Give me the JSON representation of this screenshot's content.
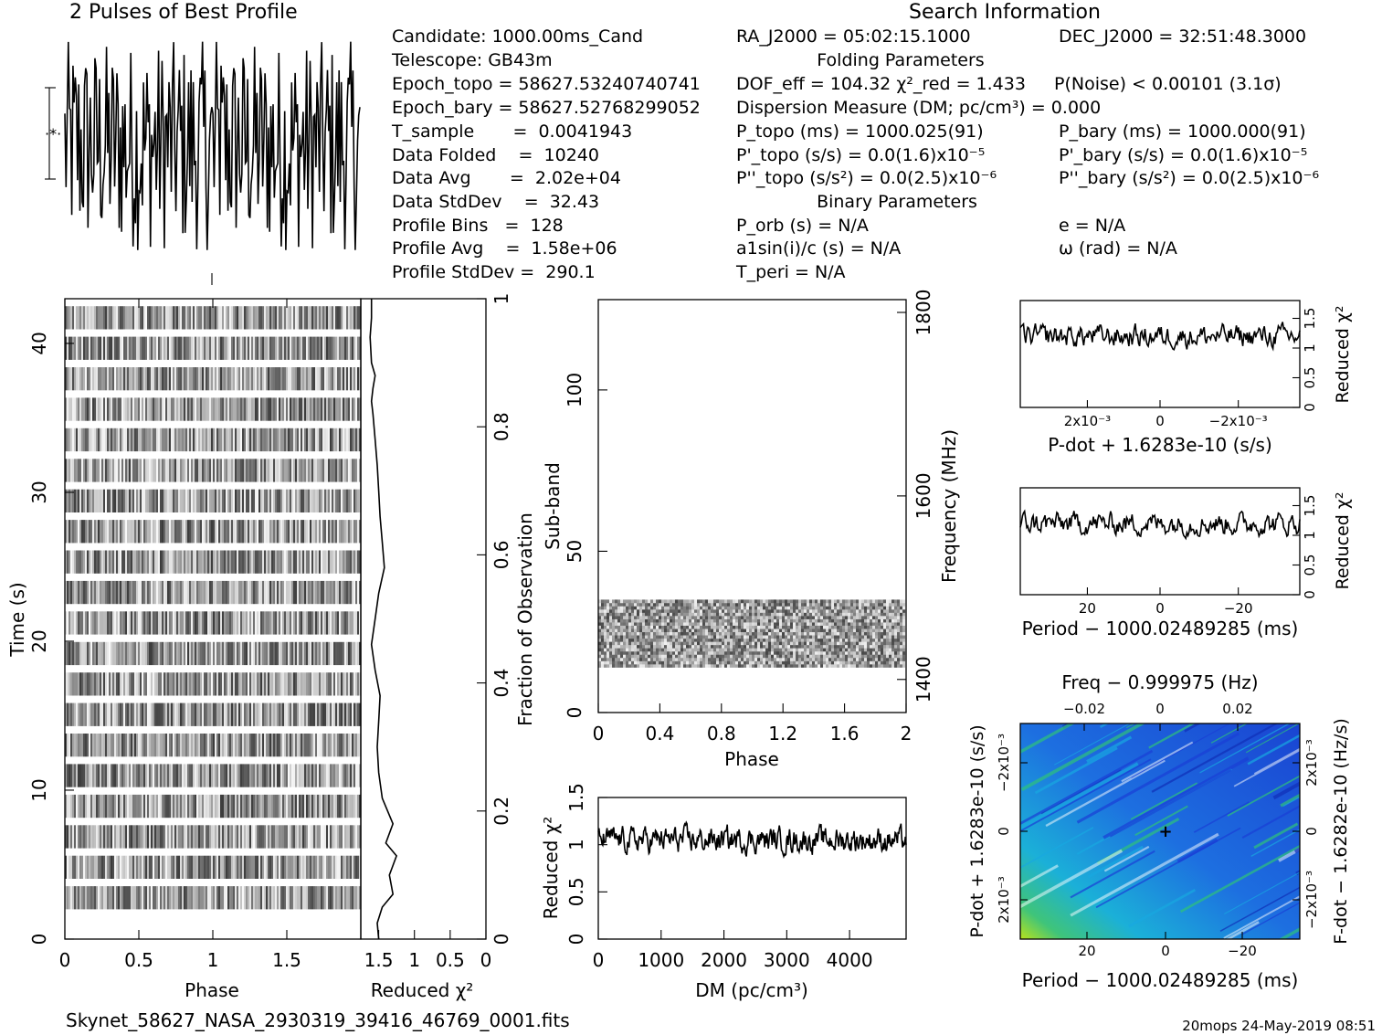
{
  "header": {
    "profile_title": "2 Pulses of Best Profile",
    "search_title": "Search Information",
    "footer_file": "Skynet_58627_NASA_2930319_39416_46769_0001.fits",
    "footer_stamp": "20mops 24-May-2019 08:51"
  },
  "info": {
    "candidate": "Candidate:  1000.00ms_Cand",
    "telescope": "Telescope:  GB43m",
    "epoch_topo": "Epoch_topo = 58627.53240740741",
    "epoch_bary": "Epoch_bary = 58627.52768299052",
    "t_sample": "T_sample       =  0.0041943",
    "data_folded": "Data Folded    =  10240",
    "data_avg": "Data Avg       =  2.02e+04",
    "data_stddev": "Data StdDev    =  32.43",
    "profile_bins": "Profile Bins   =  128",
    "profile_avg": "Profile Avg    =  1.58e+06",
    "profile_stddev": "Profile StdDev =  290.1"
  },
  "search": {
    "ra": "RA_J2000 = 05:02:15.1000",
    "dec": "DEC_J2000 = 32:51:48.3000",
    "folding_title": "Folding Parameters",
    "dof": "DOF_eff = 104.32  χ²_red = 1.433",
    "p_noise": "P(Noise) < 0.00101  (3.1σ)",
    "dm": "Dispersion Measure (DM; pc/cm³) = 0.000",
    "p_topo": "P_topo (ms) =  1000.025(91)",
    "p_bary": "P_bary (ms) =  1000.000(91)",
    "pd_topo": "P'_topo (s/s) = 0.0(1.6)x10⁻⁵",
    "pd_bary": "P'_bary (s/s) = 0.0(1.6)x10⁻⁵",
    "pdd_topo": "P''_topo (s/s²) = 0.0(2.5)x10⁻⁶",
    "pdd_bary": "P''_bary (s/s²) = 0.0(2.5)x10⁻⁶",
    "binary_title": "Binary Parameters",
    "p_orb": "P_orb (s) = N/A",
    "e": "e = N/A",
    "a1sini": "a1sin(i)/c (s) = N/A",
    "omega": "ω (rad) = N/A",
    "t_peri": "T_peri = N/A"
  },
  "colors": {
    "background": "#ffffff",
    "ink": "#000000",
    "map_low": "#1a3fd6",
    "map_mid": "#18a8e0",
    "map_high": "#2ec27a",
    "map_peak": "#c8e617"
  },
  "chart_data": [
    {
      "type": "line",
      "name": "profile",
      "title": "2 Pulses of Best Profile",
      "xlim": [
        0,
        2
      ],
      "grid": false,
      "series": [
        {
          "values_note": "128-bin noise profile repeated twice"
        }
      ]
    },
    {
      "type": "heatmap",
      "name": "time-phase",
      "xlabel": "Phase",
      "ylabel": "Time (s)",
      "xlim": [
        0,
        2
      ],
      "ylim": [
        0,
        43
      ],
      "x_ticks": [
        "0",
        "0.5",
        "1",
        "1.5"
      ],
      "y_ticks": [
        "0",
        "10",
        "20",
        "30",
        "40"
      ],
      "subintegrations": 20
    },
    {
      "type": "line",
      "name": "time-chi2",
      "xlabel": "Reduced χ²",
      "ylabel": "Fraction of Observation",
      "x_ticks": [
        "1.5",
        "1",
        "0.5",
        "0"
      ],
      "y_ticks": [
        "0",
        "0.2",
        "0.4",
        "0.6",
        "0.8",
        "1"
      ],
      "xlim": [
        1.75,
        0
      ],
      "ylim": [
        0,
        1
      ],
      "x": [
        1.5,
        1.52,
        1.45,
        1.3,
        1.35,
        1.25,
        1.4,
        1.3,
        1.45,
        1.5,
        1.52,
        1.5,
        1.48,
        1.55,
        1.6,
        1.55,
        1.5,
        1.42,
        1.45,
        1.48,
        1.5,
        1.52,
        1.55,
        1.58,
        1.6,
        1.58,
        1.55,
        1.6,
        1.62,
        1.6,
        1.6
      ],
      "y": [
        0.0,
        0.025,
        0.05,
        0.07,
        0.1,
        0.13,
        0.15,
        0.18,
        0.22,
        0.26,
        0.3,
        0.34,
        0.38,
        0.42,
        0.46,
        0.5,
        0.54,
        0.58,
        0.62,
        0.66,
        0.7,
        0.74,
        0.78,
        0.82,
        0.84,
        0.86,
        0.88,
        0.9,
        0.94,
        0.97,
        1.0
      ]
    },
    {
      "type": "heatmap",
      "name": "subband-phase",
      "xlabel": "Phase",
      "ylabel": "Sub-band",
      "ylabel2": "Frequency (MHz)",
      "xlim": [
        0,
        2
      ],
      "ylim": [
        0,
        128
      ],
      "x_ticks": [
        "0",
        "0.4",
        "0.8",
        "1.2",
        "1.6",
        "2"
      ],
      "y_ticks": [
        "0",
        "50",
        "100"
      ],
      "y2_ticks": [
        "1400",
        "1600",
        "1800"
      ],
      "band_rows": [
        14,
        35
      ]
    },
    {
      "type": "line",
      "name": "dm-chi2",
      "xlabel": "DM (pc/cm³)",
      "ylabel": "Reduced χ²",
      "xlim": [
        0,
        4900
      ],
      "ylim": [
        0,
        1.5
      ],
      "x_ticks": [
        "0",
        "1000",
        "2000",
        "3000",
        "4000"
      ],
      "y_ticks": [
        "0",
        "0.5",
        "1",
        "1.5"
      ],
      "mean": 1.05
    },
    {
      "type": "line",
      "name": "pdot-chi2",
      "xlabel": "P-dot + 1.6283e-10 (s/s)",
      "ylabel": "Reduced χ²",
      "x_ticks": [
        "2x10⁻³",
        "0",
        "−2x10⁻³"
      ],
      "y_ticks": [
        "0",
        "0.5",
        "1",
        "1.5"
      ],
      "ylim": [
        0,
        1.8
      ],
      "mean": 1.2
    },
    {
      "type": "line",
      "name": "period-chi2",
      "xlabel": "Period − 1000.02489285 (ms)",
      "ylabel": "Reduced χ²",
      "x_ticks": [
        "20",
        "0",
        "−20"
      ],
      "y_ticks": [
        "0",
        "0.5",
        "1",
        "1.5"
      ],
      "ylim": [
        0,
        1.8
      ],
      "mean": 1.2
    },
    {
      "type": "heatmap",
      "name": "p-pdot",
      "title": "Freq − 0.999975 (Hz)",
      "xlabel": "Period − 1000.02489285 (ms)",
      "ylabel": "P-dot + 1.6283e-10 (s/s)",
      "ylabel2": "F-dot − 1.6282e-10 (Hz/s)",
      "x_ticks": [
        "20",
        "0",
        "−20"
      ],
      "top_ticks": [
        "−0.02",
        "0",
        "0.02"
      ],
      "y_ticks": [
        "−2x10⁻³",
        "0",
        "2x10⁻³"
      ],
      "y2_ticks": [
        "2x10⁻³",
        "0",
        "−2x10⁻³"
      ]
    }
  ]
}
